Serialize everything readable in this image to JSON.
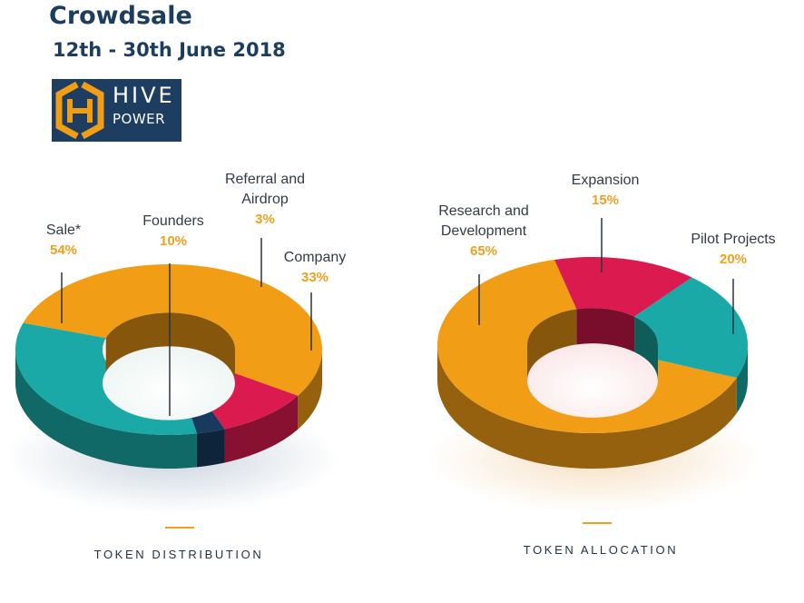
{
  "header": {
    "title": "Crowdsale",
    "dates": "12th - 30th June 2018"
  },
  "logo": {
    "word1": "HIVE",
    "word2": "POWER",
    "icon": "hive-hexagon-h-icon"
  },
  "colors": {
    "sale": "#f29d16",
    "founders": "#db1a4f",
    "airdrop": "#173a5e",
    "company": "#1aa9a6",
    "pct_text": "#f29f1f",
    "navy": "#1c3d5e"
  },
  "chart_data": [
    {
      "type": "pie",
      "title": "TOKEN DISTRIBUTION",
      "categories": [
        "Sale*",
        "Founders",
        "Referral and Airdrop",
        "Company"
      ],
      "values": [
        54,
        10,
        3,
        33
      ],
      "labels": [
        {
          "name": "Sale*",
          "pct": "54%"
        },
        {
          "name": "Founders",
          "pct": "10%"
        },
        {
          "name": "Referral and Airdrop",
          "pct": "3%"
        },
        {
          "name": "Company",
          "pct": "33%"
        }
      ]
    },
    {
      "type": "pie",
      "title": "TOKEN ALLOCATION",
      "categories": [
        "Research and Development",
        "Expansion",
        "Pilot Projects"
      ],
      "values": [
        65,
        15,
        20
      ],
      "labels": [
        {
          "name": "Research and Development",
          "pct": "65%"
        },
        {
          "name": "Expansion",
          "pct": "15%"
        },
        {
          "name": "Pilot Projects",
          "pct": "20%"
        }
      ]
    }
  ]
}
